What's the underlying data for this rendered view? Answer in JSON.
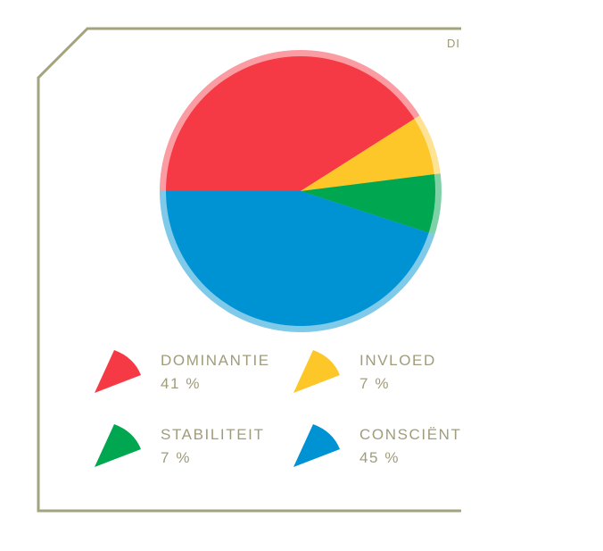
{
  "corner_label": "DI",
  "colors": {
    "frame": "#a5a27e",
    "dominantie": "#f53a46",
    "invloed": "#fec729",
    "stabiliteit": "#00a650",
    "conscientieusheid": "#0093d4"
  },
  "chart_data": {
    "type": "pie",
    "title": "",
    "slices": [
      {
        "key": "dominantie",
        "label": "DOMINANTIE",
        "value": 41,
        "value_label": "41 %"
      },
      {
        "key": "invloed",
        "label": "INVLOED",
        "value": 7,
        "value_label": "7 %"
      },
      {
        "key": "stabiliteit",
        "label": "STABILITEIT",
        "value": 7,
        "value_label": "7 %"
      },
      {
        "key": "conscientieusheid",
        "label": "CONSCIËNT",
        "value": 45,
        "value_label": "45 %"
      }
    ]
  }
}
